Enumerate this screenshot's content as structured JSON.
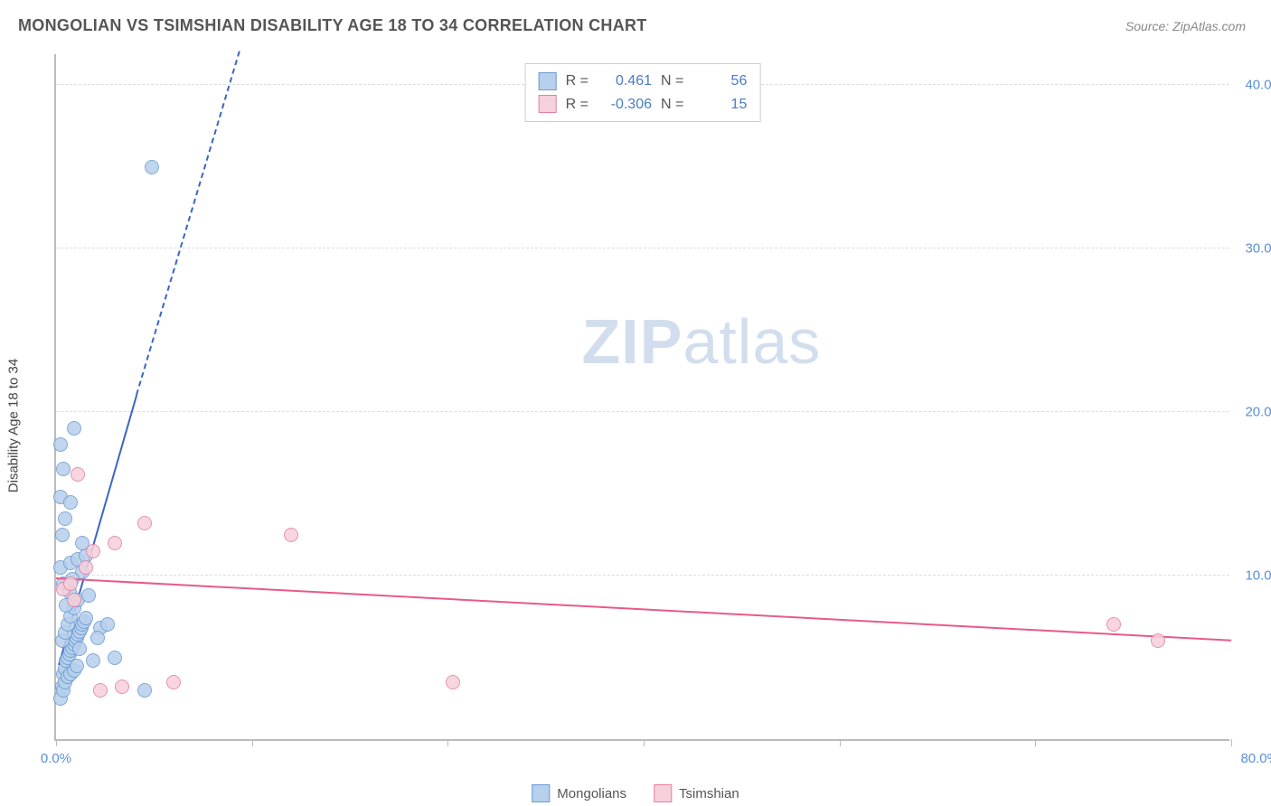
{
  "title": "MONGOLIAN VS TSIMSHIAN DISABILITY AGE 18 TO 34 CORRELATION CHART",
  "source": "Source: ZipAtlas.com",
  "ylabel": "Disability Age 18 to 34",
  "watermark_bold": "ZIP",
  "watermark_light": "atlas",
  "chart": {
    "type": "scatter",
    "xlim": [
      0,
      80
    ],
    "ylim": [
      0,
      42
    ],
    "x_ticks": [
      0,
      13.33,
      26.67,
      40,
      53.33,
      66.67,
      80
    ],
    "x_tick_labels": {
      "0": "0.0%",
      "80": "80.0%"
    },
    "y_ticks": [
      10,
      20,
      30,
      40
    ],
    "y_tick_labels": {
      "10": "10.0%",
      "20": "20.0%",
      "30": "30.0%",
      "40": "40.0%"
    },
    "grid_color": "#dddddd",
    "axis_color": "#bbbbbb",
    "background_color": "#ffffff",
    "tick_label_color": "#5b8fd6",
    "marker_radius": 8,
    "series": [
      {
        "name": "Mongolians",
        "fill_color": "#b7d0ec",
        "stroke_color": "#6a9bd1",
        "trend_color": "#3a66c4",
        "R": "0.461",
        "N": "56",
        "trend_solid": {
          "x1": 0.2,
          "y1": 4.5,
          "x2": 5.5,
          "y2": 21.0
        },
        "trend_dash": {
          "x1": 5.5,
          "y1": 21.0,
          "x2": 12.5,
          "y2": 42.0
        },
        "points": [
          [
            0.3,
            2.5
          ],
          [
            0.4,
            3.2
          ],
          [
            0.5,
            4.0
          ],
          [
            0.6,
            4.3
          ],
          [
            0.7,
            4.8
          ],
          [
            0.8,
            5.0
          ],
          [
            0.9,
            5.2
          ],
          [
            1.0,
            5.4
          ],
          [
            1.1,
            5.6
          ],
          [
            1.2,
            5.8
          ],
          [
            1.3,
            6.0
          ],
          [
            1.4,
            6.2
          ],
          [
            1.5,
            6.4
          ],
          [
            1.6,
            6.6
          ],
          [
            1.7,
            6.8
          ],
          [
            1.8,
            7.0
          ],
          [
            1.9,
            7.2
          ],
          [
            2.0,
            7.4
          ],
          [
            0.5,
            3.0
          ],
          [
            0.6,
            3.5
          ],
          [
            0.8,
            3.8
          ],
          [
            1.0,
            4.0
          ],
          [
            1.2,
            4.2
          ],
          [
            1.4,
            4.5
          ],
          [
            0.4,
            6.0
          ],
          [
            0.6,
            6.5
          ],
          [
            0.8,
            7.0
          ],
          [
            1.0,
            7.5
          ],
          [
            1.2,
            8.0
          ],
          [
            1.5,
            8.5
          ],
          [
            0.5,
            9.5
          ],
          [
            0.3,
            10.5
          ],
          [
            1.0,
            10.8
          ],
          [
            1.5,
            11.0
          ],
          [
            2.0,
            11.2
          ],
          [
            0.4,
            12.5
          ],
          [
            1.8,
            12.0
          ],
          [
            0.6,
            13.5
          ],
          [
            0.3,
            14.8
          ],
          [
            1.0,
            14.5
          ],
          [
            0.5,
            16.5
          ],
          [
            0.3,
            18.0
          ],
          [
            1.2,
            19.0
          ],
          [
            3.0,
            6.8
          ],
          [
            4.0,
            5.0
          ],
          [
            2.5,
            4.8
          ],
          [
            3.5,
            7.0
          ],
          [
            6.0,
            3.0
          ],
          [
            1.8,
            10.2
          ],
          [
            2.2,
            8.8
          ],
          [
            0.7,
            8.2
          ],
          [
            0.9,
            9.0
          ],
          [
            1.1,
            9.8
          ],
          [
            2.8,
            6.2
          ],
          [
            1.6,
            5.5
          ],
          [
            6.5,
            35.0
          ]
        ]
      },
      {
        "name": "Tsimshian",
        "fill_color": "#f6d0db",
        "stroke_color": "#e37fa0",
        "trend_color": "#e85a8a",
        "R": "-0.306",
        "N": "15",
        "trend_solid": {
          "x1": 0,
          "y1": 9.8,
          "x2": 80,
          "y2": 6.0
        },
        "points": [
          [
            0.5,
            9.2
          ],
          [
            1.0,
            9.5
          ],
          [
            1.5,
            16.2
          ],
          [
            2.0,
            10.5
          ],
          [
            2.5,
            11.5
          ],
          [
            3.0,
            3.0
          ],
          [
            4.0,
            12.0
          ],
          [
            4.5,
            3.2
          ],
          [
            6.0,
            13.2
          ],
          [
            8.0,
            3.5
          ],
          [
            16.0,
            12.5
          ],
          [
            27.0,
            3.5
          ],
          [
            72.0,
            7.0
          ],
          [
            75.0,
            6.0
          ],
          [
            1.2,
            8.5
          ]
        ]
      }
    ]
  },
  "stats_labels": {
    "R": "R =",
    "N": "N ="
  },
  "legend_series": [
    "Mongolians",
    "Tsimshian"
  ]
}
